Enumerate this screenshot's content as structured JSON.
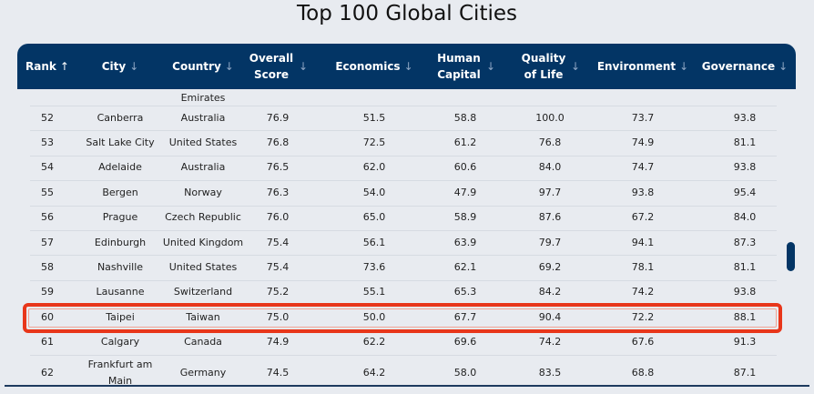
{
  "title": "Top 100 Global Cities",
  "colors": {
    "header": "#033565",
    "highlight": "#e8361a",
    "background": "#e8ebf0"
  },
  "columns": [
    {
      "label": "Rank",
      "sort": "arrow-up-icon"
    },
    {
      "label": "City",
      "sort": "arrow-down-icon"
    },
    {
      "label": "Country",
      "sort": "arrow-down-icon"
    },
    {
      "label": "Overall Score",
      "sort": "arrow-down-icon"
    },
    {
      "label": "Economics",
      "sort": "arrow-down-icon"
    },
    {
      "label": "Human Capital",
      "sort": "arrow-down-icon"
    },
    {
      "label": "Quality of Life",
      "sort": "arrow-down-icon"
    },
    {
      "label": "Environment",
      "sort": "arrow-down-icon"
    },
    {
      "label": "Governance",
      "sort": "arrow-down-icon"
    }
  ],
  "partial_row_text": "Emirates",
  "rows": [
    [
      "52",
      "Canberra",
      "Australia",
      "76.9",
      "51.5",
      "58.8",
      "100.0",
      "73.7",
      "93.8"
    ],
    [
      "53",
      "Salt Lake City",
      "United States",
      "76.8",
      "72.5",
      "61.2",
      "76.8",
      "74.9",
      "81.1"
    ],
    [
      "54",
      "Adelaide",
      "Australia",
      "76.5",
      "62.0",
      "60.6",
      "84.0",
      "74.7",
      "93.8"
    ],
    [
      "55",
      "Bergen",
      "Norway",
      "76.3",
      "54.0",
      "47.9",
      "97.7",
      "93.8",
      "95.4"
    ],
    [
      "56",
      "Prague",
      "Czech Republic",
      "76.0",
      "65.0",
      "58.9",
      "87.6",
      "67.2",
      "84.0"
    ],
    [
      "57",
      "Edinburgh",
      "United Kingdom",
      "75.4",
      "56.1",
      "63.9",
      "79.7",
      "94.1",
      "87.3"
    ],
    [
      "58",
      "Nashville",
      "United States",
      "75.4",
      "73.6",
      "62.1",
      "69.2",
      "78.1",
      "81.1"
    ],
    [
      "59",
      "Lausanne",
      "Switzerland",
      "75.2",
      "55.1",
      "65.3",
      "84.2",
      "74.2",
      "93.8"
    ],
    [
      "60",
      "Taipei",
      "Taiwan",
      "75.0",
      "50.0",
      "67.7",
      "90.4",
      "72.2",
      "88.1"
    ],
    [
      "61",
      "Calgary",
      "Canada",
      "74.9",
      "62.2",
      "69.6",
      "74.2",
      "67.6",
      "91.3"
    ],
    [
      "62",
      "Frankfurt am Main",
      "Germany",
      "74.5",
      "64.2",
      "58.0",
      "83.5",
      "68.8",
      "87.1"
    ]
  ],
  "highlighted_rank": "60"
}
